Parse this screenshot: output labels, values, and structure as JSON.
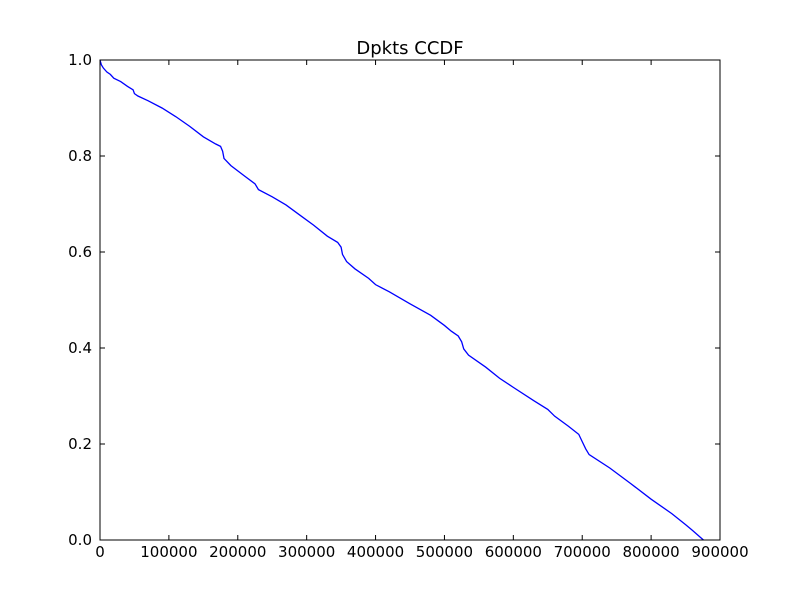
{
  "chart_data": {
    "type": "line",
    "title": "Dpkts CCDF",
    "xlabel": "",
    "ylabel": "",
    "xlim": [
      0,
      900000
    ],
    "ylim": [
      0.0,
      1.0
    ],
    "xticks": [
      0,
      100000,
      200000,
      300000,
      400000,
      500000,
      600000,
      700000,
      800000,
      900000
    ],
    "xtick_labels": [
      "0",
      "100000",
      "200000",
      "300000",
      "400000",
      "500000",
      "600000",
      "700000",
      "800000",
      "900000"
    ],
    "yticks": [
      0.0,
      0.2,
      0.4,
      0.6,
      0.8,
      1.0
    ],
    "ytick_labels": [
      "0.0",
      "0.2",
      "0.4",
      "0.6",
      "0.8",
      "1.0"
    ],
    "grid": false,
    "line_color": "#0000ff",
    "series": [
      {
        "x": [
          0,
          2000,
          5000,
          10000,
          15000,
          20000,
          30000,
          40000,
          48000,
          50000,
          55000,
          70000,
          90000,
          110000,
          130000,
          150000,
          168000,
          175000,
          178000,
          180000,
          190000,
          210000,
          225000,
          230000,
          250000,
          270000,
          290000,
          310000,
          330000,
          345000,
          350000,
          352000,
          358000,
          370000,
          390000,
          400000,
          420000,
          450000,
          480000,
          500000,
          510000,
          520000,
          525000,
          528000,
          535000,
          560000,
          580000,
          600000,
          630000,
          650000,
          660000,
          680000,
          695000,
          700000,
          705000,
          710000,
          740000,
          770000,
          800000,
          830000,
          850000,
          860000,
          872000,
          876000
        ],
        "y": [
          1.0,
          0.99,
          0.983,
          0.975,
          0.97,
          0.962,
          0.955,
          0.945,
          0.938,
          0.93,
          0.925,
          0.915,
          0.9,
          0.882,
          0.862,
          0.84,
          0.825,
          0.82,
          0.81,
          0.795,
          0.78,
          0.758,
          0.742,
          0.73,
          0.715,
          0.698,
          0.677,
          0.656,
          0.633,
          0.62,
          0.61,
          0.595,
          0.58,
          0.565,
          0.545,
          0.532,
          0.517,
          0.492,
          0.468,
          0.447,
          0.435,
          0.425,
          0.413,
          0.398,
          0.385,
          0.36,
          0.337,
          0.318,
          0.29,
          0.272,
          0.258,
          0.237,
          0.22,
          0.205,
          0.19,
          0.178,
          0.15,
          0.118,
          0.085,
          0.055,
          0.032,
          0.02,
          0.005,
          0.0
        ]
      }
    ]
  }
}
